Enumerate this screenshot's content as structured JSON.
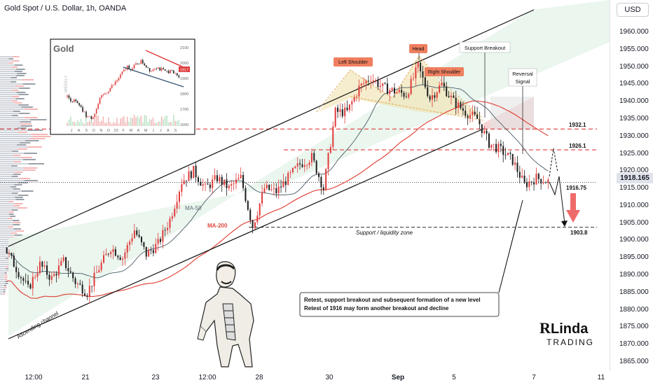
{
  "header": {
    "title": "Gold Spot / U.S. Dollar, 1h, OANDA",
    "currency": "USD",
    "current_price": "1918.165"
  },
  "y_axis": {
    "ticks": [
      "1960.000",
      "1955.000",
      "1950.000",
      "1945.000",
      "1940.000",
      "1935.000",
      "1930.000",
      "1925.000",
      "1920.000",
      "1915.000",
      "1910.000",
      "1905.000",
      "1900.000",
      "1895.000",
      "1890.000",
      "1885.000",
      "1880.000",
      "1875.000",
      "1870.000",
      "1865.000"
    ]
  },
  "x_axis": {
    "ticks": [
      {
        "label": "12:00",
        "bold": false
      },
      {
        "label": "21",
        "bold": false
      },
      {
        "label": "23",
        "bold": false
      },
      {
        "label": "12:00",
        "bold": false
      },
      {
        "label": "28",
        "bold": false
      },
      {
        "label": "30",
        "bold": false
      },
      {
        "label": "Sep",
        "bold": true
      },
      {
        "label": "5",
        "bold": false
      },
      {
        "label": "7",
        "bold": false
      },
      {
        "label": "11",
        "bold": false
      }
    ]
  },
  "annotations": {
    "left_shoulder": "Left Shoulder",
    "head": "Head",
    "right_shoulder": "Right Shoulder",
    "support_breakout": "Support Breakout",
    "reversal_signal_line1": "Reversal",
    "reversal_signal_line2": "Signal",
    "level_1932": "1932.1",
    "level_1926": "1926.1",
    "level_1916": "1916.75",
    "level_1903": "1903.8",
    "support_zone": "Support / liquidity zone",
    "ma50": "MA-50",
    "ma200": "MA-200",
    "channel": "Ascending channel",
    "note_line1": "Retest, support breakout and subsequent formation of a new level",
    "note_line2": "Retest of 1916 may form another breakout and decline"
  },
  "inset": {
    "title": "Gold",
    "y_ticks": [
      "2100",
      "2000",
      "1900",
      "1800",
      "1700",
      "1600"
    ],
    "x_ticks": [
      "J",
      "A",
      "S",
      "O",
      "N",
      "D",
      "23",
      "F",
      "M",
      "A",
      "M",
      "J",
      "J",
      "A",
      "S"
    ],
    "price_badge": "1917",
    "watermark": "WEEKLY"
  },
  "logo": {
    "line1": "Linda",
    "line2": "TRADING",
    "initial": "R"
  },
  "colors": {
    "up": "#e03c3c",
    "down": "#1f1f1f",
    "ma50": "#5b6b73",
    "ma200": "#e0483d",
    "channel": "#111111",
    "dash_red": "#e03c3c",
    "dash_dark": "#333333",
    "pattern_fill": "#e8d9a8",
    "channel_fill": "#e8f5ec"
  },
  "chart_data": {
    "type": "candlestick",
    "symbol": "XAUUSD",
    "timeframe": "1h",
    "ylim": [
      1862,
      1966
    ],
    "levels": [
      {
        "value": 1932.1,
        "style": "dashed",
        "color": "red"
      },
      {
        "value": 1926.1,
        "style": "dashed",
        "color": "red"
      },
      {
        "value": 1916.75,
        "style": "dashed",
        "color": "dark"
      },
      {
        "value": 1903.8,
        "style": "dashed",
        "color": "dark"
      }
    ],
    "current_price": 1918.165,
    "path_points": [
      {
        "t": 0,
        "price": 1898
      },
      {
        "t": 1,
        "price": 1892
      },
      {
        "t": 2,
        "price": 1886
      },
      {
        "t": 3,
        "price": 1893
      },
      {
        "t": 4,
        "price": 1889
      },
      {
        "t": 5,
        "price": 1894
      },
      {
        "t": 6,
        "price": 1888
      },
      {
        "t": 7,
        "price": 1885
      },
      {
        "t": 8,
        "price": 1892
      },
      {
        "t": 9,
        "price": 1898
      },
      {
        "t": 10,
        "price": 1895
      },
      {
        "t": 11,
        "price": 1903
      },
      {
        "t": 12,
        "price": 1896
      },
      {
        "t": 13,
        "price": 1899
      },
      {
        "t": 14,
        "price": 1906
      },
      {
        "t": 15,
        "price": 1917
      },
      {
        "t": 16,
        "price": 1920
      },
      {
        "t": 17,
        "price": 1915
      },
      {
        "t": 18,
        "price": 1918
      },
      {
        "t": 19,
        "price": 1915
      },
      {
        "t": 20,
        "price": 1918
      },
      {
        "t": 21,
        "price": 1904
      },
      {
        "t": 22,
        "price": 1915
      },
      {
        "t": 23,
        "price": 1914
      },
      {
        "t": 24,
        "price": 1918
      },
      {
        "t": 25,
        "price": 1922
      },
      {
        "t": 26,
        "price": 1924
      },
      {
        "t": 27,
        "price": 1915
      },
      {
        "t": 28,
        "price": 1937
      },
      {
        "t": 29,
        "price": 1937
      },
      {
        "t": 30,
        "price": 1944
      },
      {
        "t": 31,
        "price": 1947
      },
      {
        "t": 32,
        "price": 1944
      },
      {
        "t": 33,
        "price": 1943
      },
      {
        "t": 34,
        "price": 1942
      },
      {
        "t": 35,
        "price": 1950
      },
      {
        "t": 36,
        "price": 1941
      },
      {
        "t": 37,
        "price": 1945
      },
      {
        "t": 38,
        "price": 1940
      },
      {
        "t": 39,
        "price": 1937
      },
      {
        "t": 40,
        "price": 1935
      },
      {
        "t": 41,
        "price": 1928
      },
      {
        "t": 42,
        "price": 1926
      },
      {
        "t": 43,
        "price": 1923
      },
      {
        "t": 44,
        "price": 1916
      },
      {
        "t": 45,
        "price": 1918
      },
      {
        "t": 46,
        "price": 1917
      }
    ],
    "series": [
      {
        "name": "MA-50"
      },
      {
        "name": "MA-200"
      }
    ]
  }
}
